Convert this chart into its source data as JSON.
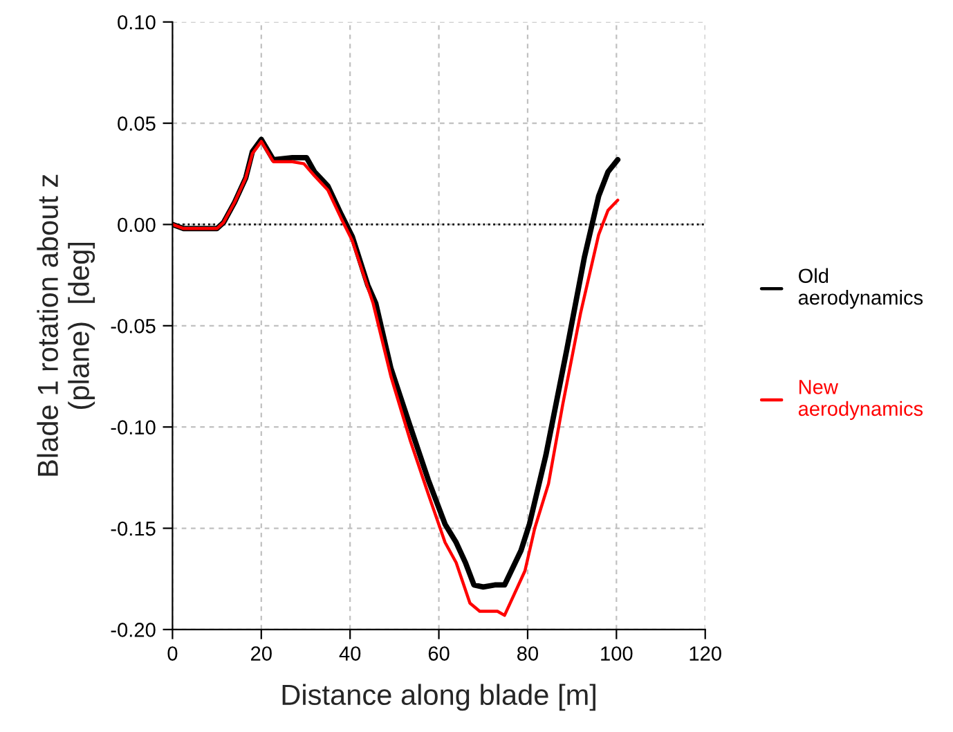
{
  "chart_data": {
    "type": "line",
    "xlabel": "Distance along blade [m]",
    "ylabel": "Blade 1 rotation about z\n(plane)  [deg]",
    "xlim": [
      0,
      120
    ],
    "xticks": [
      0,
      20,
      40,
      60,
      80,
      100,
      120
    ],
    "ylim": [
      -0.2,
      0.1
    ],
    "yticks": [
      {
        "value": -0.2,
        "label": "-0.20"
      },
      {
        "value": -0.15,
        "label": "-0.15"
      },
      {
        "value": -0.1,
        "label": "-0.10"
      },
      {
        "value": -0.05,
        "label": "-0.05"
      },
      {
        "value": 0,
        "label": "0.00"
      },
      {
        "value": 0.05,
        "label": "0.05"
      },
      {
        "value": 0.1,
        "label": "0.10"
      }
    ],
    "grid": true,
    "legend": "right",
    "line_style": "solid",
    "ref_lines": [
      {
        "axis": "y",
        "value": 0,
        "label": null,
        "color": "#000000",
        "line_style": "dotted"
      }
    ],
    "series": [
      {
        "name": "Old\naerodynamics",
        "color": "#000000",
        "x": [
          0,
          2.5,
          10,
          11.5,
          14,
          16.5,
          18,
          20,
          22.7,
          27,
          30.2,
          32,
          35,
          38,
          40.5,
          44,
          45.8,
          49.2,
          53.6,
          57.6,
          61.4,
          63.9,
          66,
          67.9,
          70,
          72.6,
          74.8,
          78.5,
          80.4,
          84.1,
          88.8,
          92.8,
          96,
          98.1,
          100.3
        ],
        "values": [
          0,
          -0.002,
          -0.002,
          0.001,
          0.011,
          0.023,
          0.036,
          0.042,
          0.032,
          0.033,
          0.033,
          0.026,
          0.019,
          0.005,
          -0.006,
          -0.03,
          -0.039,
          -0.071,
          -0.1,
          -0.126,
          -0.148,
          -0.157,
          -0.167,
          -0.178,
          -0.179,
          -0.178,
          -0.178,
          -0.161,
          -0.148,
          -0.114,
          -0.062,
          -0.016,
          0.014,
          0.026,
          0.032
        ]
      },
      {
        "name": "New\naerodynamics",
        "color": "#ff0000",
        "x": [
          0,
          2.5,
          10,
          11.5,
          14,
          16.5,
          18,
          20,
          22.7,
          27,
          29.6,
          32,
          35,
          38,
          40.5,
          45.2,
          49.2,
          53.6,
          57.6,
          61.4,
          63.9,
          67,
          69.2,
          73.2,
          74.8,
          79.4,
          81.6,
          84.7,
          87.9,
          91.9,
          96,
          98.1,
          100.3
        ],
        "values": [
          0,
          -0.002,
          -0.002,
          0.001,
          0.011,
          0.023,
          0.035,
          0.041,
          0.031,
          0.031,
          0.03,
          0.024,
          0.017,
          0.003,
          -0.008,
          -0.039,
          -0.075,
          -0.107,
          -0.133,
          -0.157,
          -0.167,
          -0.187,
          -0.191,
          -0.191,
          -0.193,
          -0.171,
          -0.15,
          -0.128,
          -0.089,
          -0.044,
          -0.005,
          0.007,
          0.012
        ]
      }
    ]
  }
}
